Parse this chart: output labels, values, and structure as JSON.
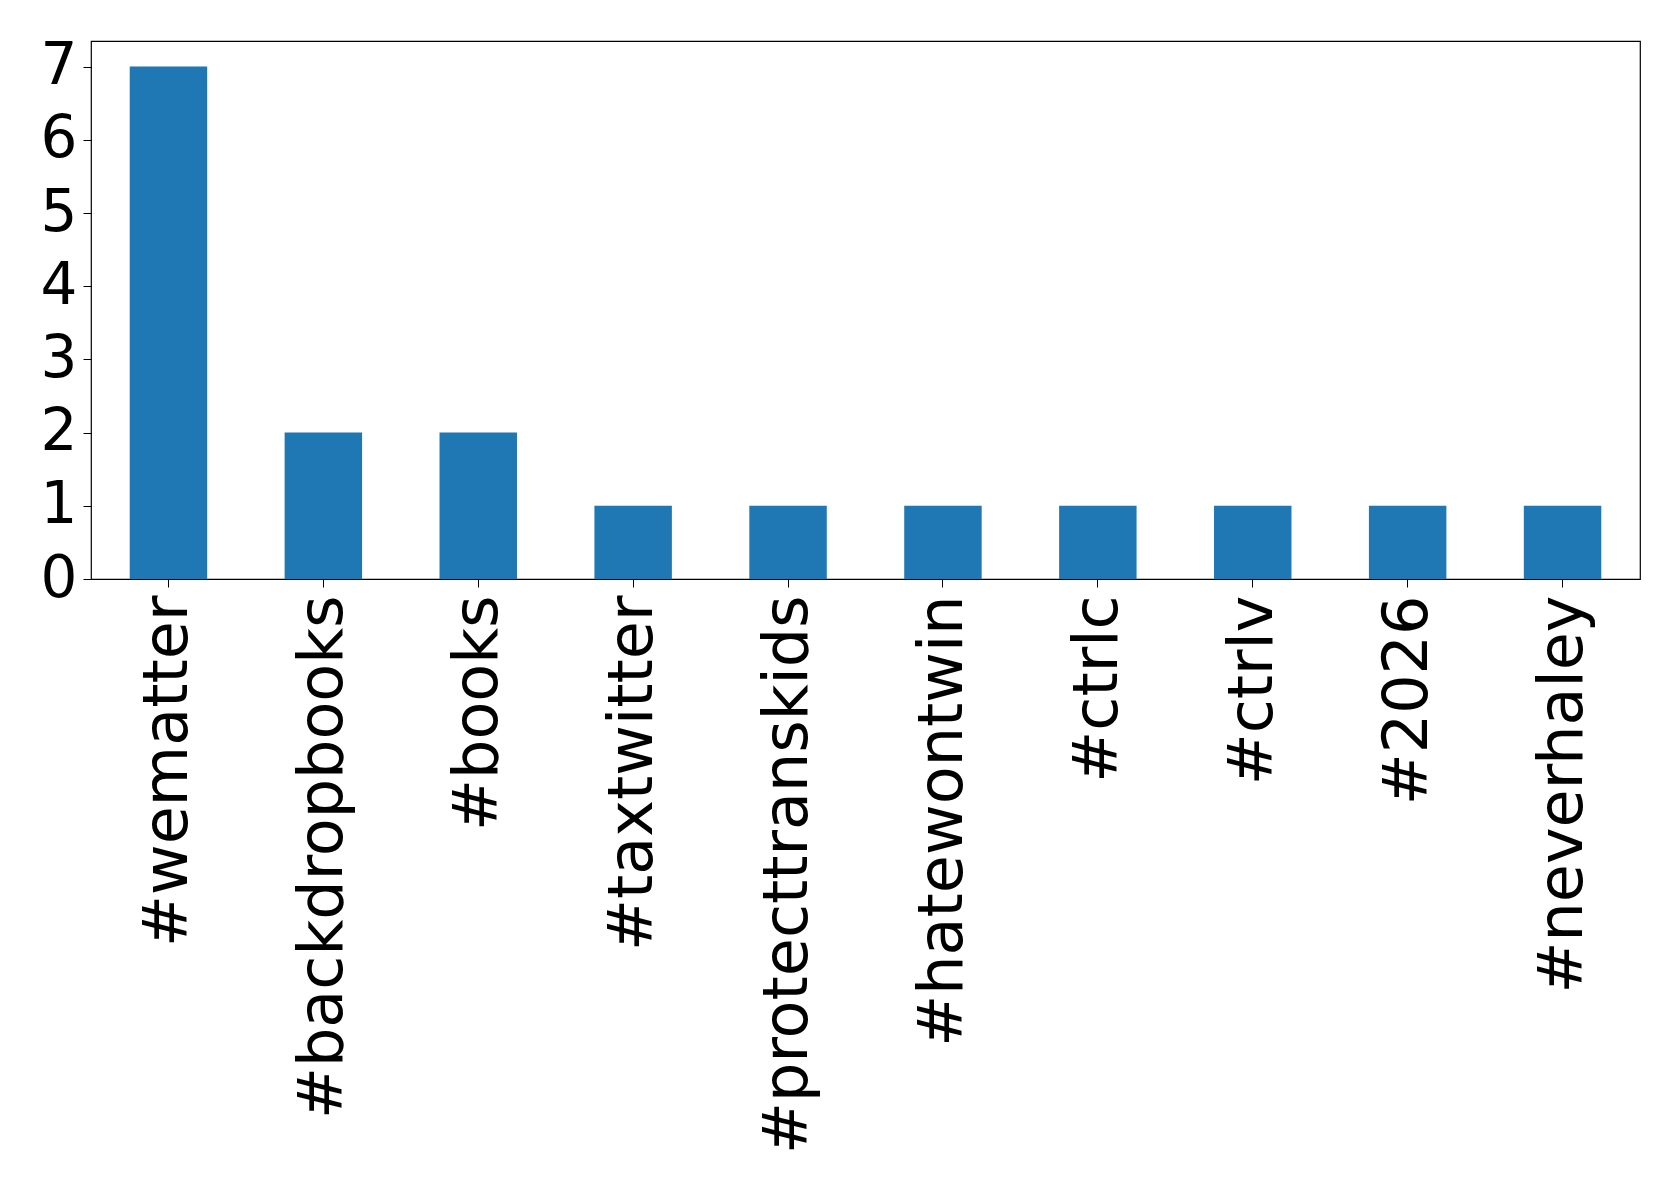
{
  "chart_data": {
    "type": "bar",
    "categories": [
      "#wematter",
      "#backdropbooks",
      "#books",
      "#taxtwitter",
      "#protecttranskids",
      "#hatewontwin",
      "#ctrlc",
      "#ctrlv",
      "#2026",
      "#neverhaley"
    ],
    "values": [
      7,
      2,
      2,
      1,
      1,
      1,
      1,
      1,
      1,
      1
    ],
    "color": "#1f77b4",
    "ylim": [
      0,
      7.35
    ],
    "yticks": [
      0,
      1,
      2,
      3,
      4,
      5,
      6,
      7
    ],
    "grid": false
  }
}
